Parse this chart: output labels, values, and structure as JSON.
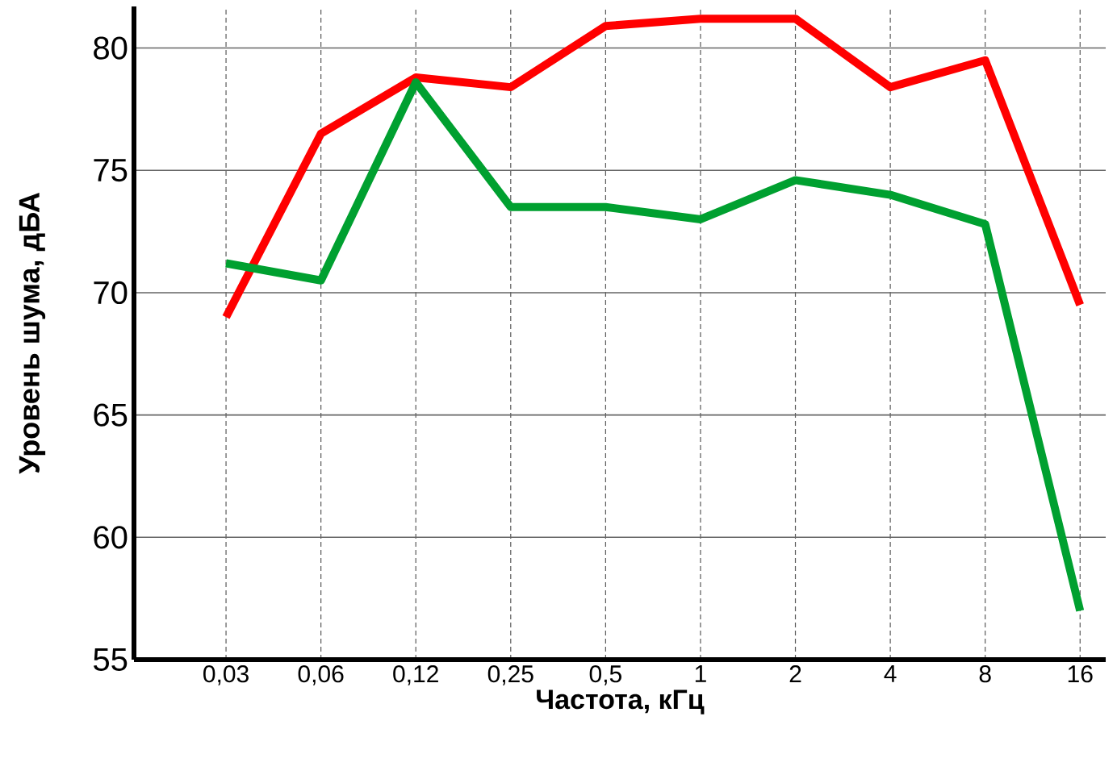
{
  "chart_data": {
    "type": "line",
    "xlabel": "Частота, кГц",
    "ylabel": "Уровень шума, дБА",
    "categories": [
      "0,03",
      "0,06",
      "0,12",
      "0,25",
      "0,5",
      "1",
      "2",
      "4",
      "8",
      "16"
    ],
    "series": [
      {
        "color": "#ff0000",
        "values": [
          69.0,
          76.5,
          78.8,
          78.4,
          80.9,
          81.2,
          81.2,
          78.4,
          79.5,
          69.5
        ]
      },
      {
        "color": "#00a030",
        "values": [
          71.2,
          70.5,
          78.6,
          73.5,
          73.5,
          73.0,
          74.6,
          74.0,
          72.8,
          57.0
        ]
      }
    ],
    "ylim": [
      55,
      81.7
    ],
    "yticks": [
      55,
      60,
      65,
      70,
      75,
      80
    ],
    "grid": true,
    "marker": "none",
    "line_style": "solid"
  }
}
